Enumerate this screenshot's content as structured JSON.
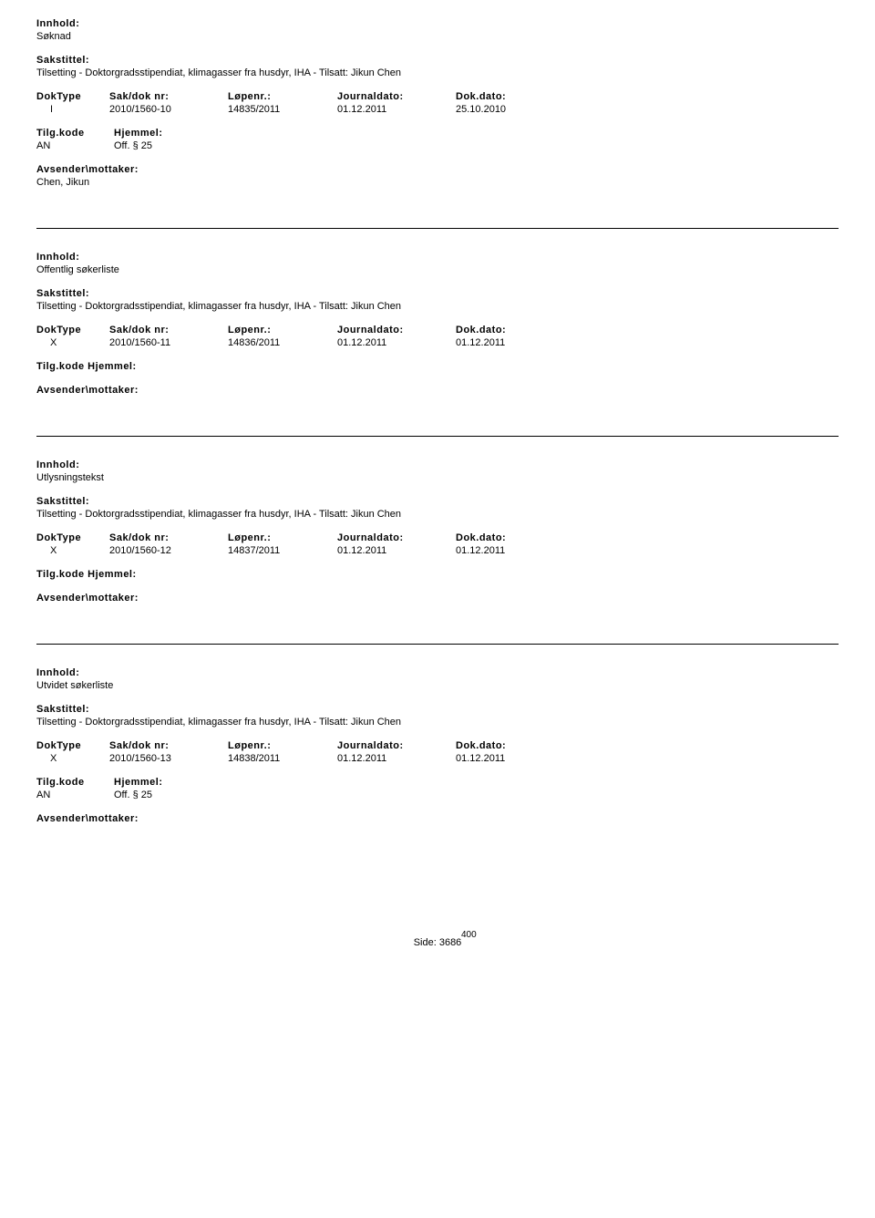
{
  "labels": {
    "innhold": "Innhold:",
    "sakstittel": "Sakstittel:",
    "doktype": "DokType",
    "sakdok": "Sak/dok nr:",
    "lopenr": "Løpenr.:",
    "journaldato": "Journaldato:",
    "dokdato": "Dok.dato:",
    "tilgkode": "Tilg.kode",
    "hjemmel": "Hjemmel:",
    "avsender": "Avsender\\mottaker:"
  },
  "entries": [
    {
      "innhold": "Søknad",
      "sakstittel": "Tilsetting - Doktorgradsstipendiat, klimagasser fra husdyr, IHA - Tilsatt: Jikun Chen",
      "doktype": "I",
      "sakdok": "2010/1560-10",
      "lopenr": "14835/2011",
      "journaldato": "01.12.2011",
      "dokdato": "25.10.2010",
      "tilgkode": "AN",
      "hjemmel": "Off. § 25",
      "avsender": "Chen, Jikun"
    },
    {
      "innhold": "Offentlig søkerliste",
      "sakstittel": "Tilsetting - Doktorgradsstipendiat, klimagasser fra husdyr, IHA - Tilsatt: Jikun Chen",
      "doktype": "X",
      "sakdok": "2010/1560-11",
      "lopenr": "14836/2011",
      "journaldato": "01.12.2011",
      "dokdato": "01.12.2011",
      "tilgkode": "",
      "hjemmel": "",
      "avsender": ""
    },
    {
      "innhold": "Utlysningstekst",
      "sakstittel": "Tilsetting - Doktorgradsstipendiat, klimagasser fra husdyr, IHA - Tilsatt: Jikun Chen",
      "doktype": "X",
      "sakdok": "2010/1560-12",
      "lopenr": "14837/2011",
      "journaldato": "01.12.2011",
      "dokdato": "01.12.2011",
      "tilgkode": "",
      "hjemmel": "",
      "avsender": ""
    },
    {
      "innhold": "Utvidet søkerliste",
      "sakstittel": "Tilsetting - Doktorgradsstipendiat, klimagasser fra husdyr, IHA - Tilsatt: Jikun Chen",
      "doktype": "X",
      "sakdok": "2010/1560-13",
      "lopenr": "14838/2011",
      "journaldato": "01.12.2011",
      "dokdato": "01.12.2011",
      "tilgkode": "AN",
      "hjemmel": "Off. § 25",
      "avsender": ""
    }
  ],
  "footer": {
    "side_label": "Side:",
    "page": "3686",
    "overlay": "400"
  }
}
